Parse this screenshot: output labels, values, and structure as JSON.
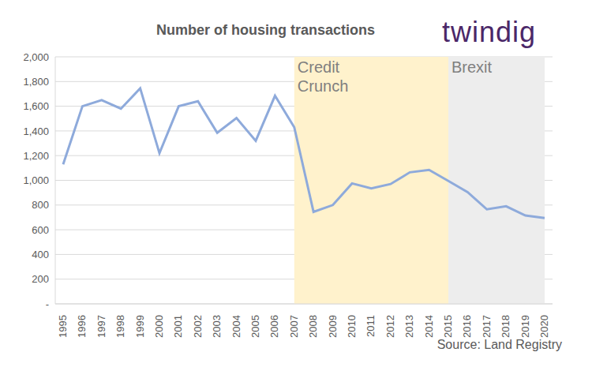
{
  "chart_data": {
    "type": "line",
    "title": "Number of housing transactions",
    "brand": "twindig",
    "source": "Source: Land Registry",
    "categories": [
      "1995",
      "1996",
      "1997",
      "1998",
      "1999",
      "2000",
      "2001",
      "2002",
      "2003",
      "2004",
      "2005",
      "2006",
      "2007",
      "2008",
      "2009",
      "2010",
      "2011",
      "2012",
      "2013",
      "2014",
      "2015",
      "2016",
      "2017",
      "2018",
      "2019",
      "2020"
    ],
    "values": [
      1130,
      1600,
      1650,
      1580,
      1745,
      1220,
      1600,
      1640,
      1385,
      1505,
      1320,
      1685,
      1430,
      745,
      800,
      975,
      935,
      970,
      1065,
      1085,
      995,
      905,
      765,
      790,
      715,
      695
    ],
    "color": "#8eaadb",
    "ylim": [
      0,
      2000
    ],
    "yticks": [
      {
        "value": 0,
        "label": "-"
      },
      {
        "value": 200,
        "label": "200"
      },
      {
        "value": 400,
        "label": "400"
      },
      {
        "value": 600,
        "label": "600"
      },
      {
        "value": 800,
        "label": "800"
      },
      {
        "value": 1000,
        "label": "1,000"
      },
      {
        "value": 1200,
        "label": "1,200"
      },
      {
        "value": 1400,
        "label": "1,400"
      },
      {
        "value": 1600,
        "label": "1,600"
      },
      {
        "value": 1800,
        "label": "1,800"
      },
      {
        "value": 2000,
        "label": "2,000"
      }
    ],
    "grid": true,
    "annotations": [
      {
        "text": "Credit Crunch",
        "from": "2007",
        "to": "2015",
        "color": "#fff2cc"
      },
      {
        "text": "Brexit",
        "from": "2015",
        "to": "2020",
        "color": "#ededed"
      }
    ]
  }
}
